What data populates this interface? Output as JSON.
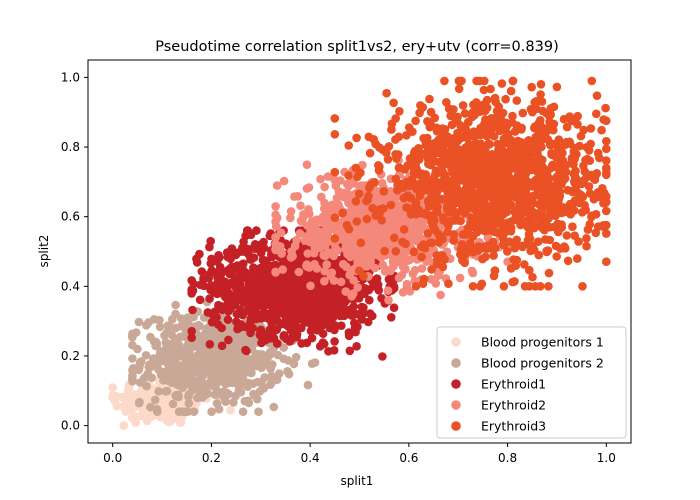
{
  "chart_data": {
    "type": "scatter",
    "title": "Pseudotime correlation split1vs2, ery+utv (corr=0.839)",
    "xlabel": "split1",
    "ylabel": "split2",
    "xlim": [
      -0.05,
      1.05
    ],
    "ylim": [
      -0.05,
      1.05
    ],
    "xticks": [
      0.0,
      0.2,
      0.4,
      0.6,
      0.8,
      1.0
    ],
    "yticks": [
      0.0,
      0.2,
      0.4,
      0.6,
      0.8,
      1.0
    ],
    "xtick_labels": [
      "0.0",
      "0.2",
      "0.4",
      "0.6",
      "0.8",
      "1.0"
    ],
    "ytick_labels": [
      "0.0",
      "0.2",
      "0.4",
      "0.6",
      "0.8",
      "1.0"
    ],
    "grid": false,
    "legend_position": "lower-right",
    "series": [
      {
        "name": "Blood progenitors 1",
        "color": "#fcd9c8",
        "center": [
          0.1,
          0.07
        ],
        "spread": [
          0.05,
          0.035
        ],
        "range": [
          [
            0.0,
            0.3
          ],
          [
            0.0,
            0.17
          ]
        ],
        "count": 180
      },
      {
        "name": "Blood progenitors 2",
        "color": "#c9a898",
        "center": [
          0.2,
          0.19
        ],
        "spread": [
          0.07,
          0.065
        ],
        "range": [
          [
            0.04,
            0.42
          ],
          [
            0.04,
            0.36
          ]
        ],
        "count": 650
      },
      {
        "name": "Erythroid1",
        "color": "#c42127",
        "center": [
          0.37,
          0.4
        ],
        "spread": [
          0.085,
          0.07
        ],
        "range": [
          [
            0.16,
            0.57
          ],
          [
            0.18,
            0.56
          ]
        ],
        "count": 1100
      },
      {
        "name": "Erythroid2",
        "color": "#f4897b",
        "center": [
          0.55,
          0.57
        ],
        "spread": [
          0.1,
          0.075
        ],
        "range": [
          [
            0.33,
            0.8
          ],
          [
            0.36,
            0.78
          ]
        ],
        "count": 800
      },
      {
        "name": "Erythroid3",
        "color": "#ea5124",
        "center": [
          0.77,
          0.7
        ],
        "spread": [
          0.11,
          0.11
        ],
        "range": [
          [
            0.45,
            1.0
          ],
          [
            0.4,
            0.99
          ]
        ],
        "count": 1300
      }
    ]
  }
}
